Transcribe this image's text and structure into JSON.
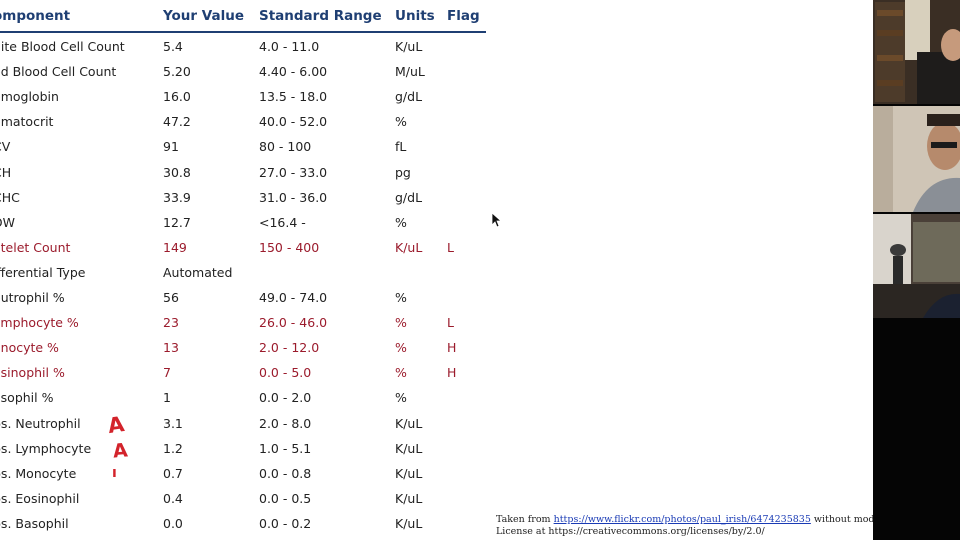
{
  "table": {
    "headers": [
      "omponent",
      "Your Value",
      "Standard Range",
      "Units",
      "Flag"
    ],
    "rows": [
      {
        "component": "hite Blood Cell Count",
        "value": "5.4",
        "range": "4.0 - 11.0",
        "units": "K/uL",
        "flag": "",
        "abnormal": false
      },
      {
        "component": "ed Blood Cell Count",
        "value": "5.20",
        "range": "4.40 - 6.00",
        "units": "M/uL",
        "flag": "",
        "abnormal": false
      },
      {
        "component": "emoglobin",
        "value": "16.0",
        "range": "13.5 - 18.0",
        "units": "g/dL",
        "flag": "",
        "abnormal": false
      },
      {
        "component": "ematocrit",
        "value": "47.2",
        "range": "40.0 - 52.0",
        "units": "%",
        "flag": "",
        "abnormal": false
      },
      {
        "component": "CV",
        "value": "91",
        "range": "80 - 100",
        "units": "fL",
        "flag": "",
        "abnormal": false
      },
      {
        "component": "CH",
        "value": "30.8",
        "range": "27.0 - 33.0",
        "units": "pg",
        "flag": "",
        "abnormal": false
      },
      {
        "component": "CHC",
        "value": "33.9",
        "range": "31.0 - 36.0",
        "units": "g/dL",
        "flag": "",
        "abnormal": false
      },
      {
        "component": "DW",
        "value": "12.7",
        "range": "<16.4 -",
        "units": "%",
        "flag": "",
        "abnormal": false
      },
      {
        "component": "atelet Count",
        "value": "149",
        "range": "150 - 400",
        "units": "K/uL",
        "flag": "L",
        "abnormal": true
      },
      {
        "component": "ifferential Type",
        "value": "Automated",
        "range": "",
        "units": "",
        "flag": "",
        "abnormal": false
      },
      {
        "component": "eutrophil %",
        "value": "56",
        "range": "49.0 - 74.0",
        "units": "%",
        "flag": "",
        "abnormal": false
      },
      {
        "component": "ymphocyte %",
        "value": "23",
        "range": "26.0 - 46.0",
        "units": "%",
        "flag": "L",
        "abnormal": true
      },
      {
        "component": "onocyte %",
        "value": "13",
        "range": "2.0 - 12.0",
        "units": "%",
        "flag": "H",
        "abnormal": true
      },
      {
        "component": "osinophil %",
        "value": "7",
        "range": "0.0 - 5.0",
        "units": "%",
        "flag": "H",
        "abnormal": true
      },
      {
        "component": "asophil %",
        "value": "1",
        "range": "0.0 - 2.0",
        "units": "%",
        "flag": "",
        "abnormal": false
      },
      {
        "component": "bs. Neutrophil",
        "value": "3.1",
        "range": "2.0 - 8.0",
        "units": "K/uL",
        "flag": "",
        "abnormal": false
      },
      {
        "component": "bs. Lymphocyte",
        "value": "1.2",
        "range": "1.0 - 5.1",
        "units": "K/uL",
        "flag": "",
        "abnormal": false
      },
      {
        "component": "bs. Monocyte",
        "value": "0.7",
        "range": "0.0 - 0.8",
        "units": "K/uL",
        "flag": "",
        "abnormal": false
      },
      {
        "component": "bs. Eosinophil",
        "value": "0.4",
        "range": "0.0 - 0.5",
        "units": "K/uL",
        "flag": "",
        "abnormal": false
      },
      {
        "component": "bs. Basophil",
        "value": "0.0",
        "range": "0.0 - 0.2",
        "units": "K/uL",
        "flag": "",
        "abnormal": false
      }
    ]
  },
  "annotations": {
    "mark1": "A",
    "mark2": "A",
    "mark3": "ı"
  },
  "credit": {
    "prefix": "Taken from",
    "link": "https://www.flickr.com/photos/paul_irish/6474235835",
    "suffix": "without modifications.",
    "line2": "License at https://creativecommons.org/licenses/by/2.0/"
  },
  "colors": {
    "header": "#1f3f73",
    "abnormal": "#9b1b2c",
    "annotation": "#d3232b"
  },
  "video_tiles": [
    "participant-1",
    "participant-2",
    "participant-3"
  ],
  "icons": [
    "mouse-cursor-icon"
  ]
}
